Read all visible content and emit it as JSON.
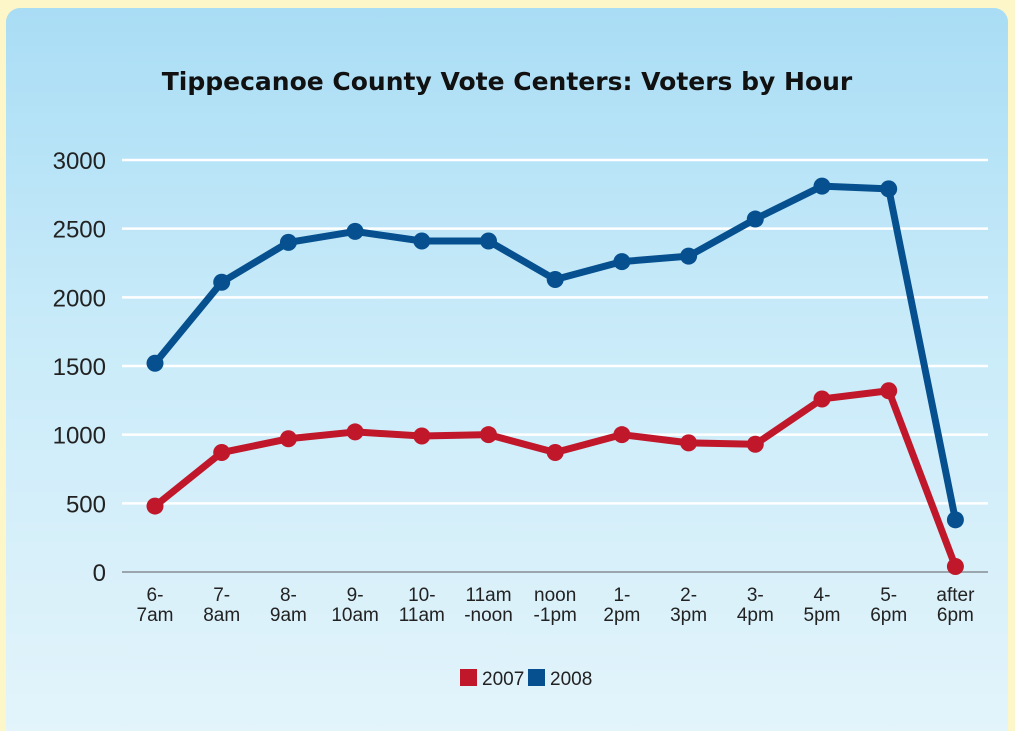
{
  "chart_data": {
    "type": "line",
    "title": "Tippecanoe County Vote Centers: Voters by Hour",
    "xlabel": "",
    "ylabel": "",
    "ylim": [
      0,
      3000
    ],
    "yticks": [
      0,
      500,
      1000,
      1500,
      2000,
      2500,
      3000
    ],
    "grid": true,
    "legend_position": "bottom-center",
    "categories": [
      [
        "6-",
        "7am"
      ],
      [
        "7-",
        "8am"
      ],
      [
        "8-",
        "9am"
      ],
      [
        "9-",
        "10am"
      ],
      [
        "10-",
        "11am"
      ],
      [
        "11am",
        "-noon"
      ],
      [
        "noon",
        "-1pm"
      ],
      [
        "1-",
        "2pm"
      ],
      [
        "2-",
        "3pm"
      ],
      [
        "3-",
        "4pm"
      ],
      [
        "4-",
        "5pm"
      ],
      [
        "5-",
        "6pm"
      ],
      [
        "after",
        "6pm"
      ]
    ],
    "series": [
      {
        "name": "2007",
        "color": "#c0182a",
        "values": [
          480,
          870,
          970,
          1020,
          990,
          1000,
          870,
          1000,
          940,
          930,
          1260,
          1320,
          40
        ]
      },
      {
        "name": "2008",
        "color": "#06508f",
        "values": [
          1520,
          2110,
          2400,
          2480,
          2410,
          2410,
          2130,
          2260,
          2300,
          2570,
          2810,
          2790,
          380
        ]
      }
    ]
  }
}
